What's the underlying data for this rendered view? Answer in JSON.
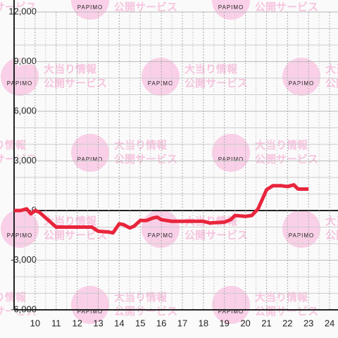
{
  "chart_data": {
    "type": "line",
    "watermark": {
      "logo": "PAPIMO",
      "lines": [
        "大当り情報",
        "公開サービス"
      ]
    },
    "x": [
      9,
      9.3,
      9.6,
      9.8,
      10,
      10.2,
      11,
      12,
      12.7,
      13,
      13.5,
      13.7,
      14,
      14.2,
      14.5,
      14.7,
      15,
      15.3,
      15.6,
      15.8,
      16,
      16.5,
      17,
      18,
      18.3,
      19,
      19.3,
      19.5,
      20,
      20.3,
      20.6,
      21,
      21.3,
      21.7,
      22,
      22.3,
      22.5,
      23
    ],
    "series": [
      {
        "color": "#e8253c",
        "values": [
          0,
          0,
          100,
          -200,
          0,
          -100,
          -1000,
          -1000,
          -1000,
          -1250,
          -1300,
          -1350,
          -800,
          -850,
          -1050,
          -950,
          -600,
          -600,
          -450,
          -400,
          -550,
          -650,
          -650,
          -650,
          -750,
          -700,
          -550,
          -300,
          -350,
          -300,
          100,
          1250,
          1500,
          1500,
          1450,
          1550,
          1300,
          1300
        ]
      }
    ],
    "xlim": [
      9,
      24.4
    ],
    "xticks": [
      10,
      11,
      12,
      13,
      14,
      15,
      16,
      17,
      18,
      19,
      20,
      21,
      22,
      23,
      24
    ],
    "ylim": [
      -6000,
      12000
    ],
    "yticks": [
      {
        "value": -6000,
        "label": "-6,000"
      },
      {
        "value": -3000,
        "label": "-3,000"
      },
      0,
      {
        "value": 3000,
        "label": "3,000"
      },
      {
        "value": 6000,
        "label": "6,000"
      },
      {
        "value": 9000,
        "label": "9,000"
      },
      {
        "value": 12000,
        "label": "12,000"
      }
    ],
    "yminor": [
      -5000,
      -4000,
      -2000,
      -1000,
      1000,
      2000,
      4000,
      5000,
      7000,
      8000,
      10000,
      11000
    ],
    "grid": true
  }
}
